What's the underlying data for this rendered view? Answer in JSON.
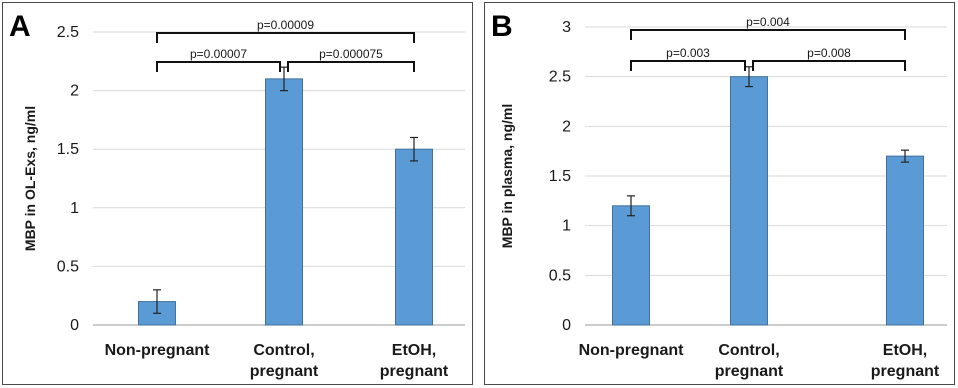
{
  "chart_data": [
    {
      "type": "bar",
      "panel_label": "A",
      "categories": [
        [
          "Non-pregnant"
        ],
        [
          "Control,",
          "pregnant"
        ],
        [
          "EtOH,",
          "pregnant"
        ]
      ],
      "values": [
        0.2,
        2.1,
        1.5
      ],
      "error": [
        0.1,
        0.1,
        0.1
      ],
      "ylabel": "MBP in OL-Exs, ng/ml",
      "ylim": [
        0,
        2.5
      ],
      "yticks": [
        "0",
        "0.5",
        "1",
        "1.5",
        "2",
        "2.5"
      ],
      "grid": true,
      "bar_color": "#5b9bd5",
      "comparisons": [
        {
          "from": 0,
          "to": 1,
          "label": "p=0.00007",
          "level": 1
        },
        {
          "from": 1,
          "to": 2,
          "label": "p=0.000075",
          "level": 1
        },
        {
          "from": 0,
          "to": 2,
          "label": "p=0.00009",
          "level": 2
        }
      ]
    },
    {
      "type": "bar",
      "panel_label": "B",
      "categories": [
        [
          "Non-pregnant"
        ],
        [
          "Control,",
          "pregnant"
        ],
        [
          "EtOH,",
          "pregnant"
        ]
      ],
      "values": [
        1.2,
        2.5,
        1.7
      ],
      "error": [
        0.1,
        0.1,
        0.06
      ],
      "ylabel": "MBP in plasma, ng/ml",
      "ylim": [
        0,
        3
      ],
      "yticks": [
        "0",
        "0.5",
        "1",
        "1.5",
        "2",
        "2.5",
        "3"
      ],
      "grid": true,
      "bar_color": "#5b9bd5",
      "comparisons": [
        {
          "from": 0,
          "to": 1,
          "label": "p=0.003",
          "level": 1
        },
        {
          "from": 1,
          "to": 2,
          "label": "p=0.008",
          "level": 1
        },
        {
          "from": 0,
          "to": 2,
          "label": "p=0.004",
          "level": 2
        }
      ]
    }
  ]
}
